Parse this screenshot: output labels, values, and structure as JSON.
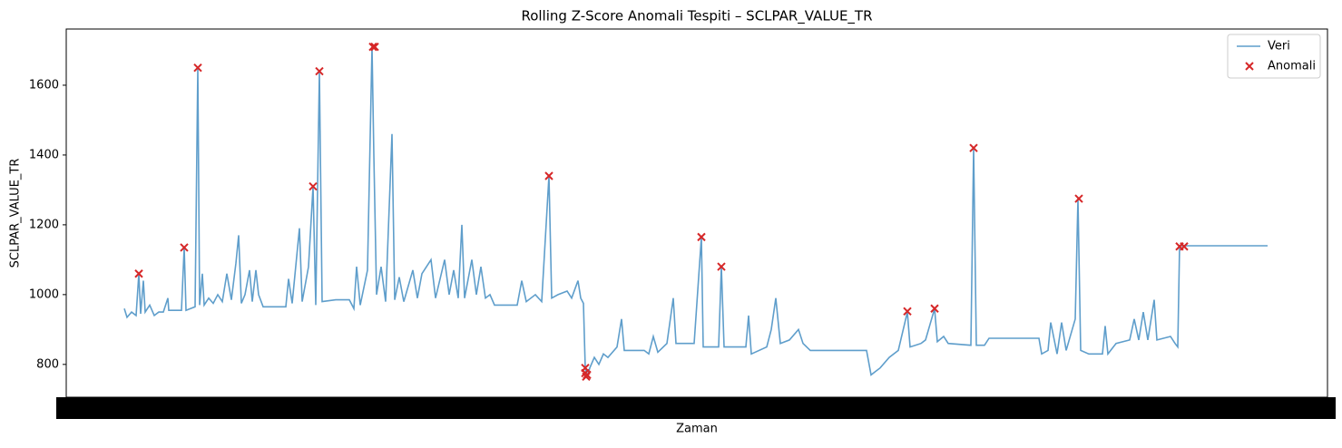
{
  "chart_data": {
    "type": "line",
    "title": "Rolling Z-Score Anomali Tespiti – SCLPAR_VALUE_TR",
    "x_label": "Zaman",
    "y_label": "SCLPAR_VALUE_TR",
    "xlim": [
      73,
      1463
    ],
    "ylim": [
      706,
      1761
    ],
    "yticks": [
      800,
      1000,
      1200,
      1400,
      1600
    ],
    "legend": "upper right",
    "series": [
      {
        "name": "Veri",
        "color": "#5f9ecb",
        "kind": "line",
        "x": [
          137,
          140,
          145,
          150,
          153,
          155,
          158,
          160,
          165,
          170,
          175,
          180,
          185,
          186,
          200,
          203,
          205,
          210,
          215,
          218,
          220,
          223,
          225,
          230,
          235,
          240,
          245,
          250,
          255,
          260,
          263,
          266,
          270,
          275,
          278,
          282,
          285,
          290,
          315,
          318,
          322,
          330,
          333,
          340,
          345,
          348,
          352,
          355,
          370,
          385,
          390,
          393,
          397,
          405,
          410,
          412,
          415,
          420,
          425,
          432,
          435,
          440,
          445,
          455,
          460,
          465,
          475,
          480,
          490,
          495,
          500,
          505,
          509,
          512,
          520,
          525,
          530,
          535,
          540,
          545,
          570,
          575,
          580,
          590,
          597,
          605,
          608,
          615,
          625,
          630,
          637,
          640,
          643,
          645,
          647,
          650,
          655,
          660,
          665,
          670,
          680,
          685,
          688,
          710,
          715,
          720,
          725,
          735,
          742,
          745,
          765,
          773,
          775,
          792,
          795,
          798,
          822,
          825,
          828,
          845,
          850,
          855,
          860,
          870,
          880,
          885,
          893,
          955,
          960,
          965,
          970,
          980,
          990,
          1000,
          1003,
          1015,
          1020,
          1030,
          1033,
          1040,
          1045,
          1070,
          1073,
          1076,
          1085,
          1090,
          1145,
          1148,
          1155,
          1158,
          1165,
          1170,
          1175,
          1185,
          1188,
          1191,
          1200,
          1215,
          1218,
          1221,
          1230,
          1245,
          1250,
          1255,
          1260,
          1265,
          1272,
          1275,
          1290,
          1295,
          1298,
          1300,
          1397
        ],
        "values": [
          960,
          935,
          950,
          940,
          1060,
          945,
          1040,
          950,
          970,
          940,
          950,
          950,
          990,
          955,
          955,
          1135,
          955,
          960,
          965,
          1650,
          970,
          1060,
          970,
          990,
          975,
          1000,
          980,
          1060,
          985,
          1090,
          1170,
          975,
          1000,
          1070,
          980,
          1070,
          1000,
          965,
          965,
          1045,
          975,
          1190,
          980,
          1080,
          1310,
          970,
          1640,
          980,
          985,
          985,
          960,
          1080,
          970,
          1070,
          1710,
          1400,
          1000,
          1080,
          980,
          1460,
          985,
          1050,
          980,
          1070,
          990,
          1060,
          1100,
          990,
          1100,
          1000,
          1070,
          990,
          1200,
          990,
          1100,
          1000,
          1080,
          990,
          1000,
          970,
          970,
          1040,
          980,
          1000,
          980,
          1340,
          990,
          1000,
          1010,
          990,
          1040,
          990,
          975,
          790,
          765,
          790,
          820,
          800,
          830,
          820,
          850,
          930,
          840,
          840,
          830,
          880,
          835,
          860,
          990,
          860,
          860,
          1165,
          850,
          850,
          1080,
          850,
          850,
          940,
          830,
          850,
          900,
          990,
          860,
          870,
          900,
          860,
          840,
          840,
          770,
          780,
          790,
          820,
          840,
          950,
          850,
          860,
          870,
          960,
          865,
          880,
          860,
          855,
          1420,
          855,
          855,
          875,
          875,
          830,
          840,
          920,
          830,
          920,
          840,
          930,
          1275,
          840,
          830,
          830,
          910,
          830,
          860,
          870,
          930,
          870,
          950,
          870,
          985,
          870,
          880,
          860,
          850,
          1140,
          1140
        ]
      },
      {
        "name": "Anomali",
        "color": "#d62728",
        "kind": "scatter",
        "x": [
          153,
          203,
          218,
          345,
          352,
          411,
          413,
          605,
          645,
          645,
          646,
          647,
          773,
          795,
          1000,
          1030,
          1073,
          1189,
          1300,
          1305
        ],
        "values": [
          1060,
          1135,
          1650,
          1310,
          1640,
          1710,
          1710,
          1340,
          790,
          775,
          765,
          770,
          1165,
          1080,
          952,
          960,
          1420,
          1275,
          1138,
          1138
        ]
      }
    ]
  }
}
